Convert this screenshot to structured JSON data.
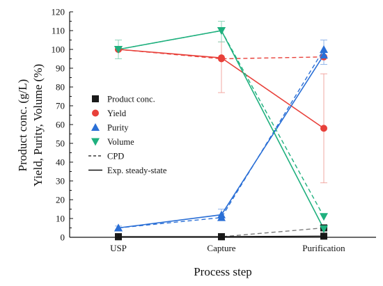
{
  "chart_data": {
    "type": "line",
    "title": "",
    "xlabel": "Process step",
    "ylabel_lines": [
      "Product conc. (g/L)",
      "Yield, Purity, Volume (%)"
    ],
    "categories": [
      "USP",
      "Capture",
      "Purification"
    ],
    "ylim": [
      0,
      120
    ],
    "yticks": [
      0,
      10,
      20,
      30,
      40,
      50,
      60,
      70,
      80,
      90,
      100,
      110,
      120
    ],
    "grid": false,
    "legend_position": "center-left",
    "legend": {
      "series_labels": [
        "Product conc.",
        "Yield",
        "Purity",
        "Volume"
      ],
      "style_labels": [
        "CPD",
        "Exp. steady-state"
      ]
    },
    "series": [
      {
        "name": "Product conc.",
        "color": "#1a1a1a",
        "marker": "square",
        "exp_steady_state": [
          0.3,
          0.3,
          0.6
        ],
        "cpd": [
          0.3,
          0.3,
          5.0
        ],
        "cpd_color": "#7a7a7a"
      },
      {
        "name": "Yield",
        "color": "#e8403a",
        "marker": "circle",
        "exp_steady_state": [
          100,
          95.5,
          58
        ],
        "cpd": [
          100,
          95,
          96
        ],
        "error_high": [
          100,
          104,
          87
        ],
        "error_low": [
          100,
          77,
          29
        ],
        "error_color": "#f2a8a3"
      },
      {
        "name": "Purity",
        "color": "#2a6fd6",
        "marker": "triangle-up",
        "exp_steady_state": [
          5,
          12,
          97
        ],
        "cpd": [
          5,
          10.5,
          100
        ],
        "error_high": [
          6,
          15,
          105
        ],
        "error_low": [
          4,
          9,
          92
        ],
        "error_color": "#8fb4ea"
      },
      {
        "name": "Volume",
        "color": "#1fb07e",
        "marker": "triangle-down",
        "exp_steady_state": [
          100,
          110,
          4.5
        ],
        "cpd": [
          100,
          110,
          11
        ],
        "error_high": [
          105,
          115,
          5
        ],
        "error_low": [
          95,
          104,
          4
        ],
        "error_color": "#8fd6bb"
      }
    ]
  }
}
